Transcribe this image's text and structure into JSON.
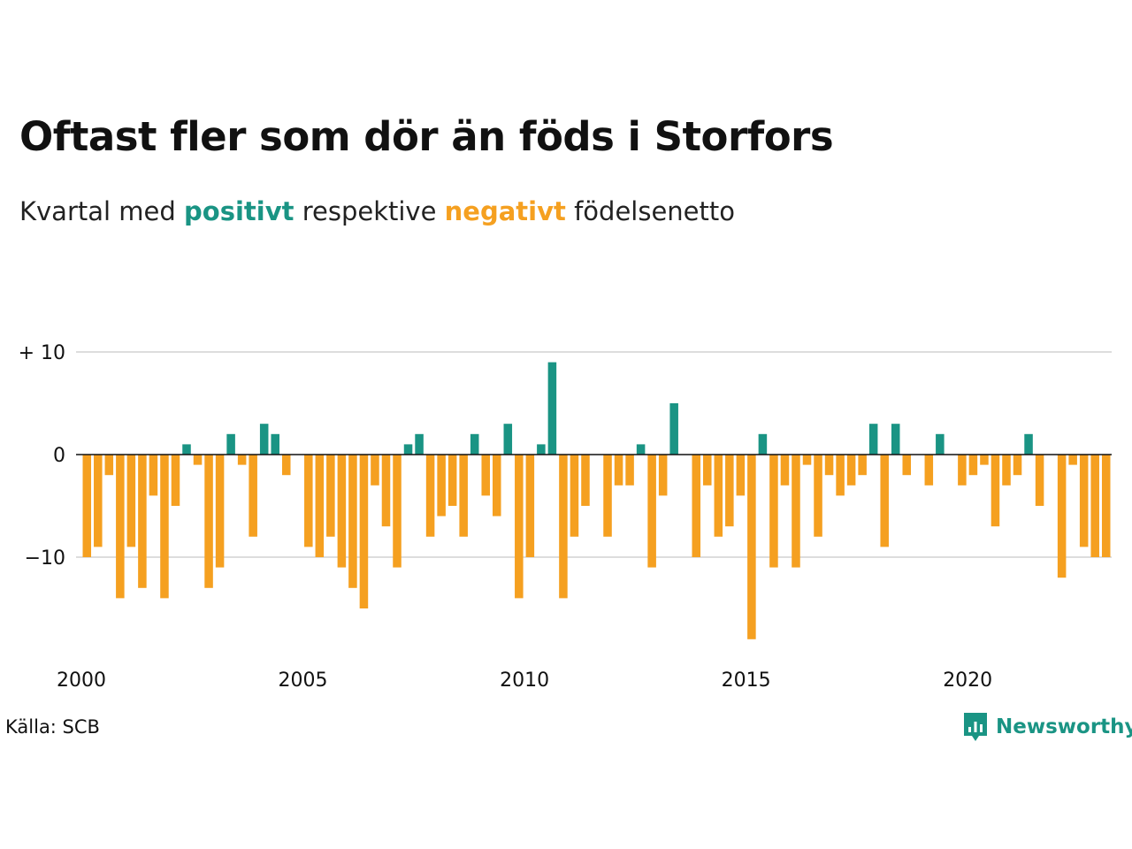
{
  "header": {
    "title": "Oftast fler som dör än föds i Storfors",
    "subtitle_pre": "Kvartal med ",
    "subtitle_pos": "positivt",
    "subtitle_mid": " respektive ",
    "subtitle_neg": "negativt",
    "subtitle_post": " födelsenetto"
  },
  "footer": {
    "source": "Källa: SCB",
    "brand": "Newsworthy"
  },
  "colors": {
    "positive": "#1a9484",
    "negative": "#f5a020",
    "grid": "#dddddd",
    "zero_line": "#111111"
  },
  "chart_data": {
    "type": "bar",
    "title": "Oftast fler som dör än föds i Storfors",
    "subtitle": "Kvartal med positivt respektive negativt födelsenetto",
    "xlabel": "",
    "ylabel": "",
    "grid": true,
    "legend": "none",
    "ylim": [
      -18,
      10
    ],
    "yticks": [
      10,
      0,
      -10
    ],
    "ytick_labels": [
      "+ 10",
      "0",
      "−10"
    ],
    "x_start": "2000-Q1",
    "x_ticks": [
      "2000",
      "2005",
      "2010",
      "2015",
      "2020"
    ],
    "x_tick_years": [
      2000,
      2005,
      2010,
      2015,
      2020
    ],
    "x_range": [
      2000,
      2023.5
    ],
    "values": [
      -10,
      -9,
      -2,
      -14,
      -9,
      -13,
      -4,
      -14,
      -5,
      1,
      -1,
      -13,
      -11,
      2,
      -1,
      -8,
      3,
      2,
      -2,
      0,
      -9,
      -10,
      -8,
      -11,
      -13,
      -15,
      -3,
      -7,
      -11,
      1,
      2,
      -8,
      -6,
      -5,
      -8,
      2,
      -4,
      -6,
      3,
      -14,
      -10,
      1,
      9,
      -14,
      -8,
      -5,
      0,
      -8,
      -3,
      -3,
      1,
      -11,
      -4,
      5,
      0,
      -10,
      -3,
      -8,
      -7,
      -4,
      -18,
      2,
      -11,
      -3,
      -11,
      -1,
      -8,
      -2,
      -4,
      -3,
      -2,
      3,
      -9,
      3,
      -2,
      0,
      -3,
      2,
      0,
      -3,
      -2,
      -1,
      -7,
      -3,
      -2,
      2,
      -5,
      0,
      -12,
      -1,
      -9,
      -10,
      -10
    ]
  }
}
